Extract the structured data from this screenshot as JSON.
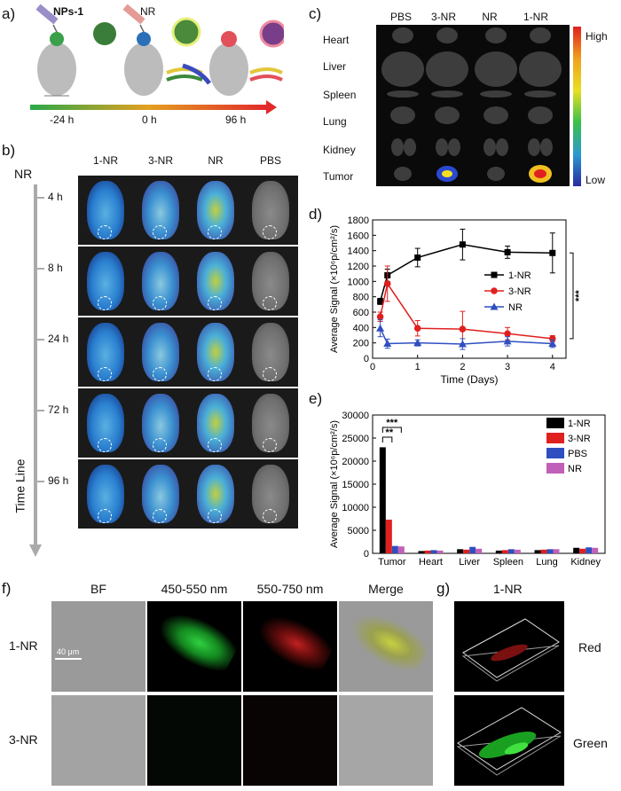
{
  "panels": {
    "a": "a)",
    "b": "b)",
    "c": "c)",
    "d": "d)",
    "e": "e)",
    "f": "f)",
    "g": "g)"
  },
  "a": {
    "nps_label": "NPs-1",
    "nr_label": "NR",
    "times": [
      "-24 h",
      "0 h",
      "96 h"
    ]
  },
  "b": {
    "cols": [
      "1-NR",
      "3-NR",
      "NR",
      "PBS"
    ],
    "nr": "NR",
    "times": [
      "4 h",
      "8 h",
      "24 h",
      "72 h",
      "96 h"
    ],
    "timeline": "Time Line"
  },
  "c": {
    "cols": [
      "PBS",
      "3-NR",
      "NR",
      "1-NR"
    ],
    "organs": [
      "Heart",
      "Liver",
      "Spleen",
      "Lung",
      "Kidney",
      "Tumor"
    ],
    "scale_high": "High",
    "scale_low": "Low"
  },
  "chart_data": [
    {
      "type": "line",
      "ylabel": "Average Signal (×10⁶p/cm²/s)",
      "xlabel": "Time (Days)",
      "xlim": [
        0,
        4.3
      ],
      "ylim": [
        0,
        1800
      ],
      "xticks": [
        0,
        1,
        2,
        3,
        4
      ],
      "yticks": [
        0,
        200,
        400,
        600,
        800,
        1000,
        1200,
        1400,
        1600,
        1800
      ],
      "x": [
        0.17,
        0.33,
        1,
        2,
        3,
        4
      ],
      "series": [
        {
          "name": "1-NR",
          "color": "#000000",
          "marker": "square",
          "values": [
            740,
            1080,
            1310,
            1480,
            1380,
            1370
          ],
          "err": [
            40,
            80,
            120,
            200,
            80,
            260
          ]
        },
        {
          "name": "3-NR",
          "color": "#e0201f",
          "marker": "circle",
          "values": [
            540,
            970,
            390,
            380,
            320,
            255
          ],
          "err": [
            60,
            230,
            100,
            230,
            80,
            40
          ]
        },
        {
          "name": "NR",
          "color": "#2f4fc0",
          "marker": "triangle",
          "values": [
            390,
            190,
            200,
            185,
            220,
            190
          ],
          "err": [
            110,
            60,
            40,
            70,
            60,
            50
          ]
        }
      ],
      "significance": "***"
    },
    {
      "type": "bar",
      "ylabel": "Average Signal (×10⁶p/cm²/s)",
      "categories": [
        "Tumor",
        "Heart",
        "Liver",
        "Spleen",
        "Lung",
        "Kidney"
      ],
      "ylim": [
        0,
        30000
      ],
      "yticks": [
        0,
        5000,
        10000,
        15000,
        20000,
        25000,
        30000
      ],
      "series": [
        {
          "name": "1-NR",
          "color": "#000000",
          "values": [
            23000,
            500,
            900,
            600,
            700,
            1200
          ]
        },
        {
          "name": "3-NR",
          "color": "#e0201f",
          "values": [
            7300,
            600,
            800,
            700,
            800,
            1000
          ]
        },
        {
          "name": "PBS",
          "color": "#2f4fc0",
          "values": [
            1600,
            700,
            1400,
            900,
            900,
            1300
          ]
        },
        {
          "name": "NR",
          "color": "#c060b8",
          "values": [
            1500,
            600,
            1000,
            800,
            900,
            1200
          ]
        }
      ],
      "sig_labels": [
        "***",
        "**"
      ]
    }
  ],
  "f": {
    "cols": [
      "BF",
      "450-550 nm",
      "550-750 nm",
      "Merge"
    ],
    "rows": [
      "1-NR",
      "3-NR"
    ],
    "scalebar": "40 μm"
  },
  "g": {
    "title": "1-NR",
    "rows": [
      "Red",
      "Green"
    ]
  }
}
